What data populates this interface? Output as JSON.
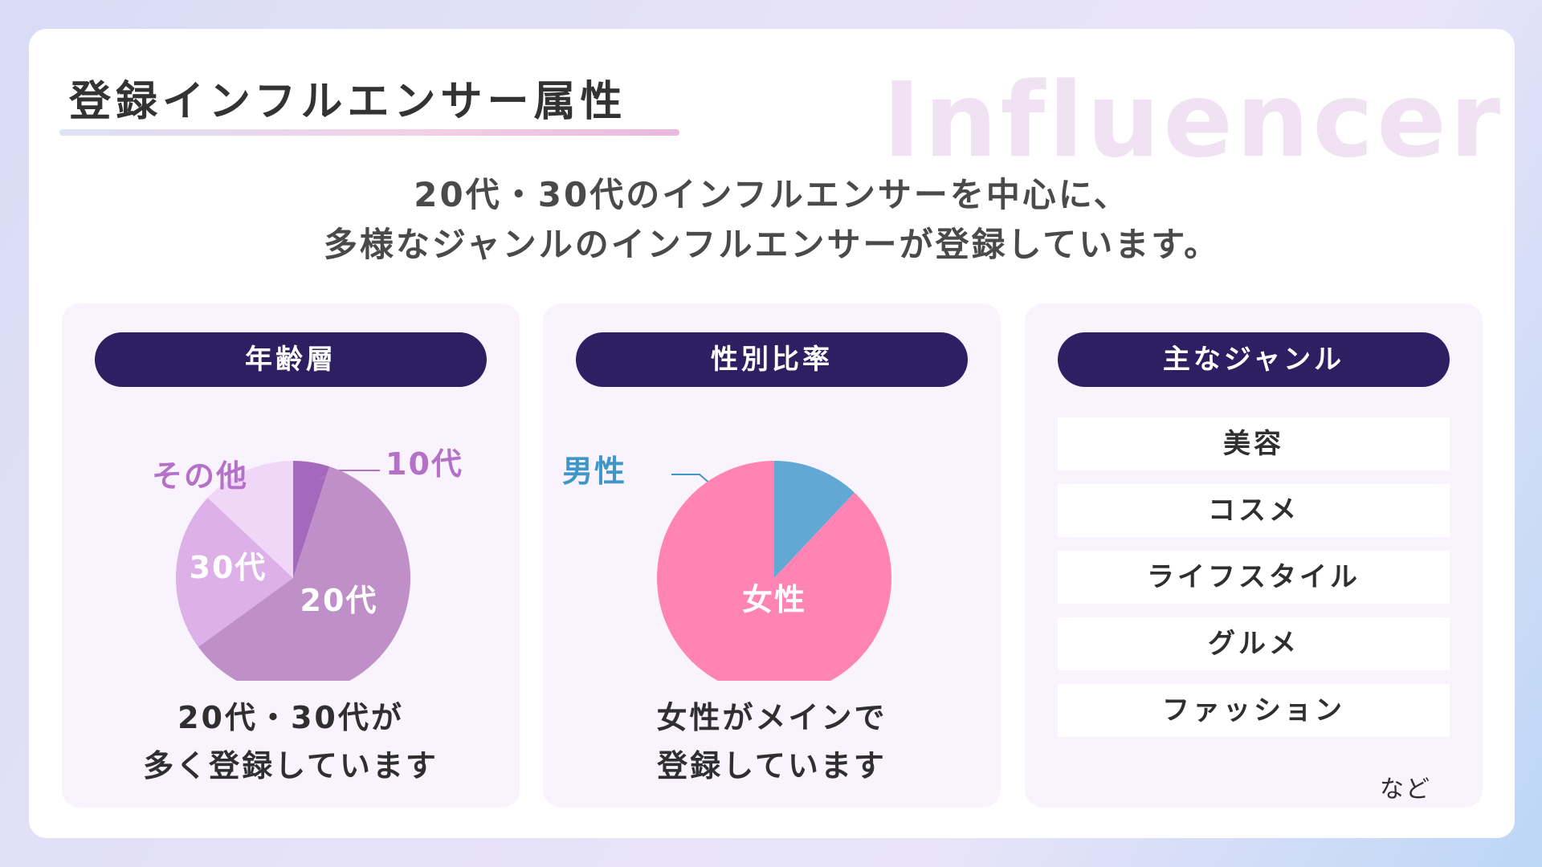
{
  "watermark": "Influencer",
  "title": "登録インフルエンサー属性",
  "lead": [
    "20代・30代のインフルエンサーを中心に、",
    "多様なジャンルのインフルエンサーが登録しています。"
  ],
  "panels": {
    "age": {
      "heading": "年齢層",
      "caption": [
        "20代・30代が",
        "多く登録しています"
      ]
    },
    "gender": {
      "heading": "性別比率",
      "caption": [
        "女性がメインで",
        "登録しています"
      ]
    },
    "genre": {
      "heading": "主なジャンル",
      "items": [
        "美容",
        "コスメ",
        "ライフスタイル",
        "グルメ",
        "ファッション"
      ],
      "etc": "など"
    }
  },
  "chart_data": [
    {
      "type": "pie",
      "title": "年齢層",
      "categories": [
        "10代",
        "20代",
        "30代",
        "その他"
      ],
      "values": [
        5,
        60,
        22,
        13
      ],
      "colors": [
        "#a468bd",
        "#bf8fc8",
        "#ddb0e8",
        "#f0d7f8"
      ],
      "label_colors": [
        "#b471c7",
        "#ffffff",
        "#ffffff",
        "#b471c7"
      ]
    },
    {
      "type": "pie",
      "title": "性別比率",
      "categories": [
        "男性",
        "女性"
      ],
      "values": [
        12,
        88
      ],
      "colors": [
        "#61a8d4",
        "#ff84b4"
      ],
      "label_colors": [
        "#3f97c8",
        "#ffffff"
      ]
    }
  ]
}
